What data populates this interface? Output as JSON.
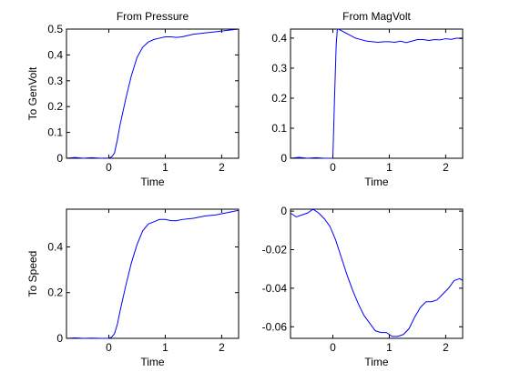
{
  "figure": {
    "col_titles": [
      "From Pressure",
      "From MagVolt"
    ],
    "row_labels": [
      "To GenVolt",
      "To Speed"
    ],
    "line_color": "#0000ff",
    "axis_color": "#000000"
  },
  "chart_data": [
    {
      "type": "line",
      "title": "From Pressure",
      "xlabel": "Time",
      "ylabel": "To GenVolt",
      "xlim": [
        -0.75,
        2.3
      ],
      "ylim": [
        0,
        0.5
      ],
      "xticks": [
        0,
        1,
        2
      ],
      "yticks": [
        0,
        0.1,
        0.2,
        0.3,
        0.4,
        0.5
      ],
      "grid": false,
      "series": [
        {
          "x": [
            -0.75,
            -0.6,
            -0.45,
            -0.3,
            -0.15,
            0,
            0.05,
            0.1,
            0.15,
            0.2,
            0.3,
            0.4,
            0.5,
            0.6,
            0.7,
            0.8,
            0.9,
            1.0,
            1.1,
            1.2,
            1.3,
            1.5,
            1.7,
            1.9,
            2.1,
            2.3
          ],
          "y": [
            0.0,
            0.003,
            0.0,
            0.002,
            0.0,
            0.001,
            0.005,
            0.02,
            0.07,
            0.13,
            0.23,
            0.32,
            0.39,
            0.43,
            0.45,
            0.46,
            0.465,
            0.47,
            0.47,
            0.468,
            0.47,
            0.48,
            0.485,
            0.49,
            0.495,
            0.5
          ]
        }
      ]
    },
    {
      "type": "line",
      "title": "From MagVolt",
      "xlabel": "Time",
      "ylabel": "",
      "xlim": [
        -0.75,
        2.3
      ],
      "ylim": [
        0,
        0.43
      ],
      "xticks": [
        0,
        1,
        2
      ],
      "yticks": [
        0,
        0.1,
        0.2,
        0.3,
        0.4
      ],
      "grid": false,
      "series": [
        {
          "x": [
            -0.75,
            -0.6,
            -0.45,
            -0.3,
            -0.15,
            0,
            0.03,
            0.06,
            0.08,
            0.1,
            0.2,
            0.3,
            0.4,
            0.5,
            0.6,
            0.7,
            0.8,
            0.9,
            1.0,
            1.1,
            1.2,
            1.3,
            1.4,
            1.5,
            1.6,
            1.7,
            1.8,
            1.9,
            2.0,
            2.1,
            2.2,
            2.3
          ],
          "y": [
            0.0,
            0.003,
            0.0,
            0.002,
            0.0,
            0.0,
            0.2,
            0.38,
            0.43,
            0.43,
            0.42,
            0.41,
            0.4,
            0.395,
            0.39,
            0.388,
            0.386,
            0.388,
            0.388,
            0.386,
            0.39,
            0.385,
            0.39,
            0.395,
            0.395,
            0.392,
            0.395,
            0.394,
            0.398,
            0.396,
            0.4,
            0.398
          ]
        }
      ]
    },
    {
      "type": "line",
      "title": "",
      "xlabel": "Time",
      "ylabel": "To Speed",
      "xlim": [
        -0.75,
        2.3
      ],
      "ylim": [
        0,
        0.565
      ],
      "xticks": [
        0,
        1,
        2
      ],
      "yticks": [
        0,
        0.2,
        0.4
      ],
      "grid": false,
      "series": [
        {
          "x": [
            -0.75,
            -0.6,
            -0.45,
            -0.3,
            -0.15,
            0,
            0.05,
            0.1,
            0.15,
            0.2,
            0.3,
            0.4,
            0.5,
            0.6,
            0.7,
            0.8,
            0.9,
            1.0,
            1.1,
            1.2,
            1.3,
            1.5,
            1.7,
            1.9,
            2.1,
            2.3
          ],
          "y": [
            0.0,
            0.002,
            0.0,
            0.001,
            0.0,
            0.0,
            0.005,
            0.02,
            0.06,
            0.12,
            0.23,
            0.33,
            0.41,
            0.47,
            0.5,
            0.51,
            0.52,
            0.52,
            0.515,
            0.515,
            0.52,
            0.525,
            0.535,
            0.54,
            0.55,
            0.56
          ]
        }
      ]
    },
    {
      "type": "line",
      "title": "",
      "xlabel": "Time",
      "ylabel": "",
      "xlim": [
        -0.75,
        2.3
      ],
      "ylim": [
        -0.066,
        0.001
      ],
      "xticks": [
        0,
        1,
        2
      ],
      "yticks": [
        0,
        -0.02,
        -0.04,
        -0.06
      ],
      "grid": false,
      "series": [
        {
          "x": [
            -0.75,
            -0.65,
            -0.55,
            -0.45,
            -0.35,
            -0.25,
            -0.15,
            -0.05,
            0.05,
            0.15,
            0.25,
            0.35,
            0.45,
            0.55,
            0.65,
            0.75,
            0.85,
            0.95,
            1.05,
            1.15,
            1.25,
            1.35,
            1.45,
            1.55,
            1.65,
            1.75,
            1.85,
            1.95,
            2.05,
            2.15,
            2.25,
            2.3
          ],
          "y": [
            -0.001,
            -0.003,
            -0.002,
            -0.001,
            0.001,
            -0.001,
            -0.004,
            -0.008,
            -0.015,
            -0.024,
            -0.033,
            -0.041,
            -0.048,
            -0.054,
            -0.058,
            -0.062,
            -0.063,
            -0.063,
            -0.065,
            -0.065,
            -0.064,
            -0.061,
            -0.055,
            -0.05,
            -0.047,
            -0.047,
            -0.046,
            -0.043,
            -0.04,
            -0.036,
            -0.035,
            -0.036
          ]
        }
      ]
    }
  ]
}
